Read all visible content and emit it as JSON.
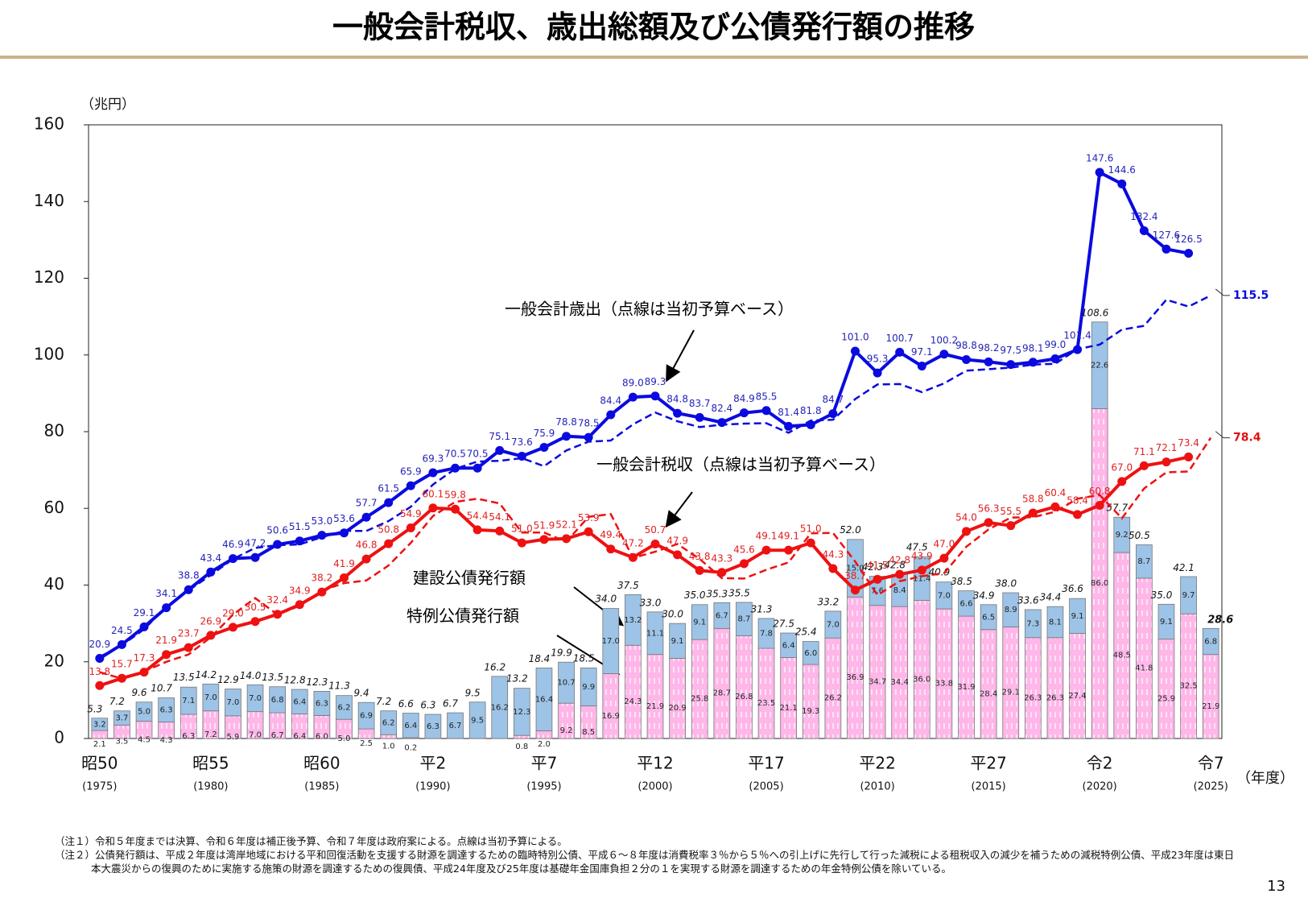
{
  "chart_data": {
    "type": "combo",
    "title": "一般会計税収、歳出総額及び公債発行額の推移",
    "y_label": "（兆円）",
    "x_label": "（年度）",
    "ylim": [
      0,
      160
    ],
    "yticks": [
      0,
      20,
      40,
      60,
      80,
      100,
      120,
      140,
      160
    ],
    "grid": false,
    "categories": [
      "昭50",
      null,
      null,
      null,
      null,
      "昭55",
      null,
      null,
      null,
      null,
      "昭60",
      null,
      null,
      null,
      null,
      "平2",
      null,
      null,
      null,
      null,
      "平7",
      null,
      null,
      null,
      null,
      "平12",
      null,
      null,
      null,
      null,
      "平17",
      null,
      null,
      null,
      null,
      "平22",
      null,
      null,
      null,
      null,
      "平27",
      null,
      null,
      null,
      null,
      "令2",
      null,
      null,
      null,
      null,
      "令7"
    ],
    "category_years": [
      "(1975)",
      null,
      null,
      null,
      null,
      "(1980)",
      null,
      null,
      null,
      null,
      "(1985)",
      null,
      null,
      null,
      null,
      "(1990)",
      null,
      null,
      null,
      null,
      "(1995)",
      null,
      null,
      null,
      null,
      "(2000)",
      null,
      null,
      null,
      null,
      "(2005)",
      null,
      null,
      null,
      null,
      "(2010)",
      null,
      null,
      null,
      null,
      "(2015)",
      null,
      null,
      null,
      null,
      "(2020)",
      null,
      null,
      null,
      null,
      "(2025)"
    ],
    "annotations": {
      "expenditure": "一般会計歳出（点線は当初予算ベース）",
      "tax": "一般会計税収（点線は当初予算ベース）"
    },
    "series": [
      {
        "name": "特例公債発行額",
        "type": "bar",
        "color": "#ffb6e8",
        "values": [
          2.1,
          3.5,
          4.5,
          4.3,
          6.3,
          7.2,
          5.9,
          7.0,
          6.7,
          6.4,
          6.0,
          5.0,
          2.5,
          1.0,
          0.2,
          null,
          null,
          null,
          null,
          0.8,
          2.0,
          9.2,
          8.5,
          16.9,
          24.3,
          21.9,
          20.9,
          25.8,
          28.7,
          26.8,
          23.5,
          21.1,
          19.3,
          26.2,
          36.9,
          34.7,
          34.4,
          36.0,
          33.8,
          31.9,
          28.4,
          29.1,
          26.3,
          26.3,
          27.4,
          86.0,
          48.5,
          41.8,
          25.9,
          32.5,
          21.9
        ],
        "value_labels": [
          "2.1",
          "3.5",
          "4.5",
          "4.3",
          "6.3",
          "7.2",
          "5.9",
          "7.0",
          "6.7",
          "6.4",
          "6.0",
          "5.0",
          "2.5",
          "1.0",
          "0.2",
          null,
          null,
          null,
          null,
          "0.8",
          "2.0",
          "9.2",
          "8.5",
          "16.9",
          "24.3",
          "21.9",
          "20.9",
          "25.8",
          "28.7",
          "26.8",
          "23.5",
          "21.1",
          "19.3",
          "26.2",
          "36.9",
          "34.7",
          "34.4",
          "36.0",
          "33.8",
          "31.9",
          "28.4",
          "29.1",
          "26.3",
          "26.3",
          "27.4",
          "86.0",
          "48.5",
          "41.8",
          "25.9",
          "32.5",
          "21.9"
        ]
      },
      {
        "name": "建設公債発行額",
        "type": "bar",
        "color": "#9dc3e6",
        "values": [
          3.2,
          3.7,
          5.0,
          6.3,
          7.1,
          7.0,
          7.0,
          7.0,
          6.8,
          6.4,
          6.3,
          6.2,
          6.9,
          6.2,
          6.4,
          6.3,
          6.7,
          9.5,
          16.2,
          12.3,
          16.4,
          10.7,
          9.9,
          17.0,
          13.2,
          11.1,
          9.1,
          9.1,
          6.7,
          8.7,
          7.8,
          6.4,
          6.0,
          7.0,
          15.0,
          7.6,
          8.4,
          11.4,
          7.0,
          6.6,
          6.5,
          8.9,
          7.3,
          8.1,
          9.1,
          22.6,
          9.2,
          8.7,
          9.1,
          9.7,
          6.8
        ],
        "value_labels": [
          "3.2",
          "3.7",
          "5.0",
          "6.3",
          "7.1",
          "7.0",
          "7.0",
          "7.0",
          "6.8",
          "6.4",
          "6.3",
          "6.2",
          "6.9",
          "6.2",
          "6.4",
          "6.3",
          "6.7",
          "9.5",
          "16.2",
          "12.3",
          "16.4",
          "10.7",
          "9.9",
          "17.0",
          "13.2",
          "11.1",
          "9.1",
          "9.1",
          "6.7",
          "8.7",
          "7.8",
          "6.4",
          "6.0",
          "7.0",
          "15.0",
          "7.6",
          "8.4",
          "11.4",
          "7.0",
          "6.6",
          "6.5",
          "8.9",
          "7.3",
          "8.1",
          "9.1",
          "22.6",
          "9.2",
          "8.7",
          "9.1",
          "9.7",
          "6.8"
        ]
      },
      {
        "type": "line",
        "color": "#0a0ae0",
        "label_color": "#2424b8",
        "marker": true,
        "values": [
          20.9,
          24.5,
          29.1,
          34.1,
          38.8,
          43.4,
          46.9,
          47.2,
          50.6,
          51.5,
          53.0,
          53.6,
          57.7,
          61.5,
          65.9,
          69.3,
          70.5,
          70.5,
          75.1,
          73.6,
          75.9,
          78.8,
          78.5,
          84.4,
          89.0,
          89.3,
          84.8,
          83.7,
          82.4,
          84.9,
          85.5,
          81.4,
          81.8,
          84.7,
          101.0,
          95.3,
          100.7,
          97.1,
          100.2,
          98.8,
          98.2,
          97.5,
          98.1,
          99.0,
          101.4,
          147.6,
          144.6,
          132.4,
          127.6,
          126.5,
          null
        ],
        "value_labels": [
          "20.9",
          "24.5",
          "29.1",
          "34.1",
          "38.8",
          "43.4",
          "46.9",
          "47.2",
          "50.6",
          "51.5",
          "53.0",
          "53.6",
          "57.7",
          "61.5",
          "65.9",
          "69.3",
          "70.5",
          "70.5",
          "75.1",
          "73.6",
          "75.9",
          "78.8",
          "78.5",
          "84.4",
          "89.0",
          "89.3",
          "84.8",
          "83.7",
          "82.4",
          "84.9",
          "85.5",
          "81.4",
          "81.8",
          "84.7",
          "101.0",
          "95.3",
          "100.7",
          "97.1",
          "100.2",
          "98.8",
          "98.2",
          "97.5",
          "98.1",
          "99.0",
          "101.4",
          "147.6",
          "144.6",
          "132.4",
          "127.6",
          "126.5",
          null
        ]
      },
      {
        "type": "line",
        "color": "#0a0ae0",
        "label_color": "#0a0ae0",
        "dashed": true,
        "values": [
          21.3,
          24.3,
          28.5,
          34.3,
          38.6,
          42.6,
          46.8,
          49.7,
          50.4,
          50.6,
          52.5,
          54.1,
          54.1,
          56.7,
          60.4,
          66.2,
          70.3,
          72.2,
          72.4,
          73.1,
          71.0,
          75.1,
          77.4,
          77.7,
          81.9,
          85.0,
          82.7,
          81.2,
          81.8,
          82.1,
          82.2,
          79.7,
          82.9,
          83.1,
          88.5,
          92.3,
          92.4,
          90.3,
          92.6,
          95.9,
          96.3,
          96.7,
          97.5,
          97.7,
          101.5,
          102.7,
          106.6,
          107.6,
          114.4,
          112.6,
          115.5
        ]
      },
      {
        "type": "line",
        "color": "#ee1111",
        "label_color": "#e02020",
        "marker": true,
        "values": [
          13.8,
          15.7,
          17.3,
          21.9,
          23.7,
          26.9,
          29.0,
          30.5,
          32.4,
          34.9,
          38.2,
          41.9,
          46.8,
          50.8,
          54.9,
          60.1,
          59.8,
          54.4,
          54.1,
          51.0,
          51.9,
          52.1,
          53.9,
          49.4,
          47.2,
          50.7,
          47.9,
          43.8,
          43.3,
          45.6,
          49.1,
          49.1,
          51.0,
          44.3,
          38.7,
          41.5,
          42.8,
          43.9,
          47.0,
          54.0,
          56.3,
          55.5,
          58.8,
          60.4,
          58.4,
          60.8,
          67.0,
          71.1,
          72.1,
          73.4,
          null
        ],
        "value_labels": [
          "13.8",
          "15.7",
          "17.3",
          "21.9",
          "23.7",
          "26.9",
          "29.0",
          "30.5",
          "32.4",
          "34.9",
          "38.2",
          "41.9",
          "46.8",
          "50.8",
          "54.9",
          "60.1",
          "59.8",
          "54.4",
          "54.1",
          "51.0",
          "51.9",
          "52.1",
          "53.9",
          "49.4",
          "47.2",
          "50.7",
          "47.9",
          "43.8",
          "43.3",
          "45.6",
          "49.1",
          "49.1",
          "51.0",
          "44.3",
          "38.7",
          "41.5",
          "42.8",
          "43.9",
          "47.0",
          "54.0",
          "56.3",
          "55.5",
          "58.8",
          "60.4",
          "58.4",
          "60.8",
          "67.0",
          "71.1",
          "72.1",
          "73.4",
          null
        ]
      },
      {
        "type": "line",
        "color": "#ee1111",
        "label_color": "#e01010",
        "dashed": true,
        "values": [
          17.3,
          15.6,
          17.5,
          20.0,
          21.9,
          26.4,
          32.3,
          36.6,
          32.3,
          34.6,
          38.6,
          40.5,
          41.2,
          45.1,
          51.0,
          58.0,
          61.7,
          62.5,
          61.3,
          53.7,
          53.7,
          51.3,
          57.8,
          58.5,
          47.1,
          48.7,
          50.7,
          46.8,
          41.8,
          41.7,
          44.0,
          45.9,
          53.5,
          53.6,
          46.1,
          37.4,
          41.0,
          42.3,
          43.1,
          50.0,
          54.5,
          57.6,
          57.7,
          59.1,
          62.5,
          63.5,
          57.4,
          65.2,
          69.4,
          69.6,
          78.4
        ]
      }
    ],
    "bar_totals": {
      "values": [
        5.3,
        7.2,
        9.6,
        10.7,
        13.5,
        14.2,
        12.9,
        14.0,
        13.5,
        12.8,
        12.3,
        11.3,
        9.4,
        7.2,
        6.6,
        6.3,
        6.7,
        9.5,
        16.2,
        13.2,
        18.4,
        19.9,
        18.5,
        34.0,
        37.5,
        33.0,
        30.0,
        35.0,
        35.3,
        35.5,
        31.3,
        27.5,
        25.4,
        33.2,
        52.0,
        42.3,
        42.8,
        47.5,
        40.9,
        38.5,
        34.9,
        38.0,
        33.6,
        34.4,
        36.6,
        108.6,
        57.7,
        50.5,
        35.0,
        42.1,
        28.6
      ],
      "value_labels": [
        "5.3",
        "7.2",
        "9.6",
        "10.7",
        "13.5",
        "14.2",
        "12.9",
        "14.0",
        "13.5",
        "12.8",
        "12.3",
        "11.3",
        "9.4",
        "7.2",
        "6.6",
        "6.3",
        "6.7",
        "9.5",
        "16.2",
        "13.2",
        "18.4",
        "19.9",
        "18.5",
        "34.0",
        "37.5",
        "33.0",
        "30.0",
        "35.0",
        "35.3",
        "35.5",
        "31.3",
        "27.5",
        "25.4",
        "33.2",
        "52.0",
        "42.3",
        "42.8",
        "47.5",
        "40.9",
        "38.5",
        "34.9",
        "38.0",
        "33.6",
        "34.4",
        "36.6",
        "108.6",
        "57.7",
        "50.5",
        "35.0",
        "42.1",
        "28.6"
      ]
    }
  },
  "notes": [
    "（注１）令和５年度までは決算、令和６年度は補正後予算、令和７年度は政府案による。点線は当初予算による。",
    "（注２）公債発行額は、平成２年度は湾岸地域における平和回復活動を支援する財源を調達するための臨時特別公債、平成６～８年度は消費税率３％から５％への引上げに先行して行った減税による租税収入の減少を補うための減税特例公債、平成23年度は東日本大震災からの復興のために実施する施策の財源を調達するための復興債、平成24年度及び25年度は基礎年金国庫負担２分の１を実現する財源を調達するための年金特例公債を除いている。"
  ],
  "page_number": "13"
}
